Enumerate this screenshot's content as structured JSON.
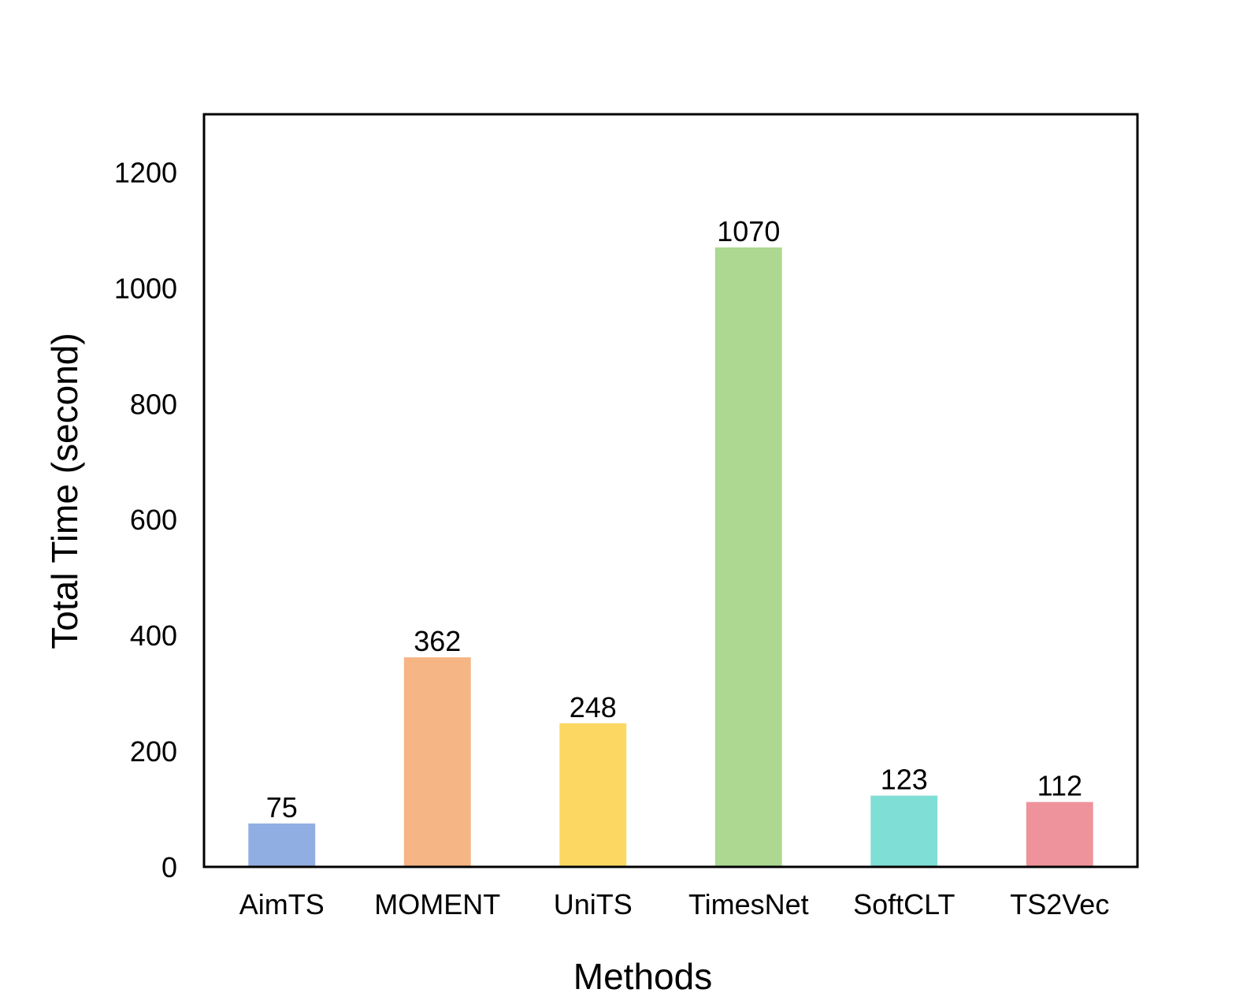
{
  "chart_data": {
    "type": "bar",
    "title": "",
    "xlabel": "Methods",
    "ylabel": "Total Time (second)",
    "ylim": [
      0,
      1300
    ],
    "yticks": [
      0,
      200,
      400,
      600,
      800,
      1000,
      1200
    ],
    "grid": false,
    "legend": "none",
    "categories": [
      "AimTS",
      "MOMENT",
      "UniTS",
      "TimesNet",
      "SoftCLT",
      "TS2Vec"
    ],
    "values": [
      75,
      362,
      248,
      1070,
      123,
      112
    ],
    "colors": [
      "#91aee2",
      "#f5b584",
      "#fcd862",
      "#acd891",
      "#7fded5",
      "#ee939b"
    ]
  }
}
